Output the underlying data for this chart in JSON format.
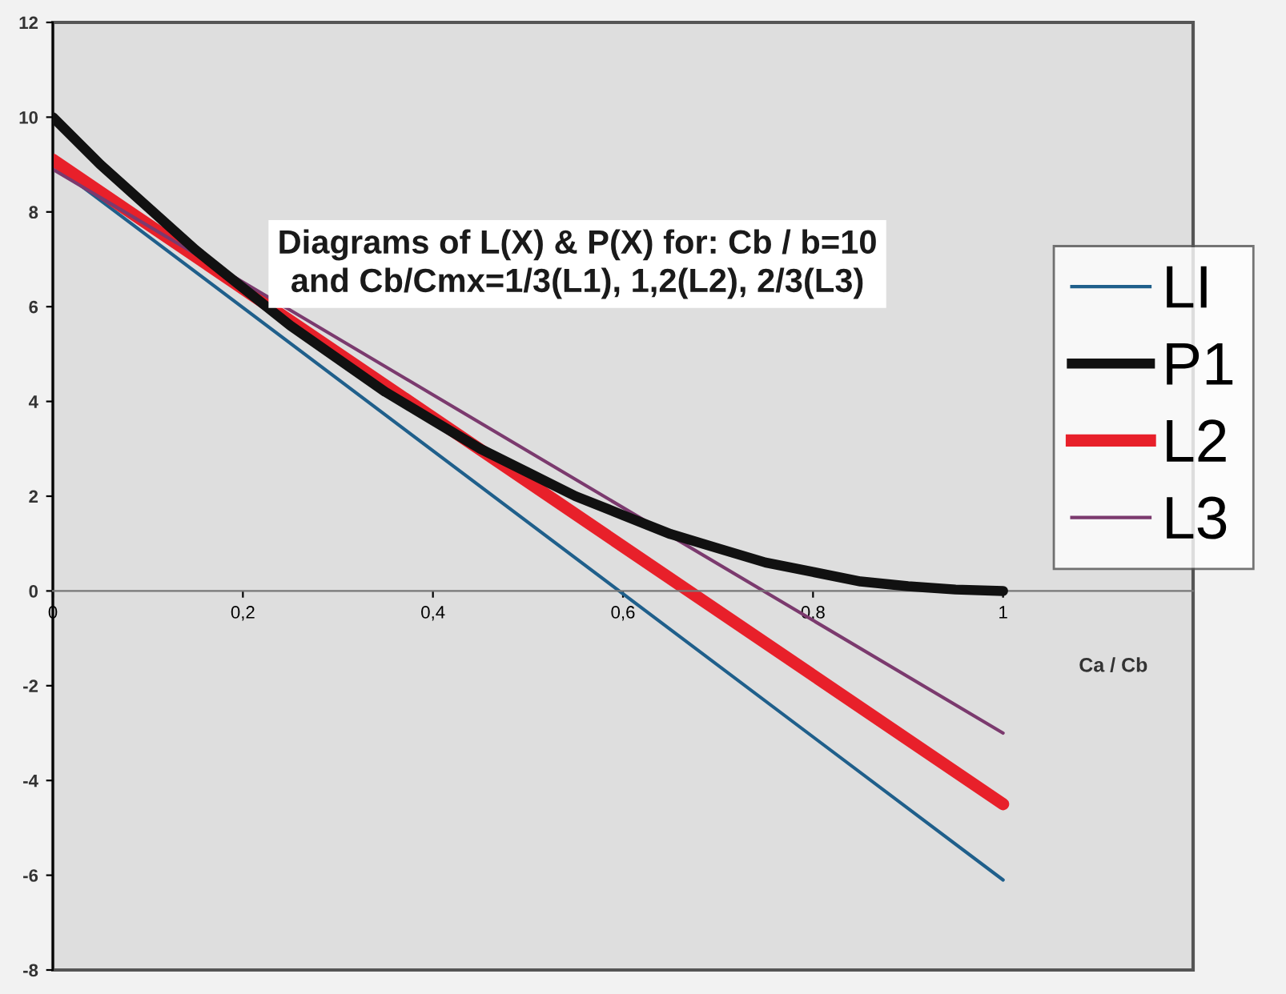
{
  "chart_data": {
    "type": "line",
    "title": "Diagrams of L(X) & P(X) for: Cb / b=10\nand Cb/Cmx=1/3(L1), 1,2(L2), 2/3(L3)",
    "xlabel": "Ca / Cb",
    "xlim": [
      0,
      1.2
    ],
    "ylim": [
      -8,
      12
    ],
    "xticks": [
      {
        "value": 0,
        "label": "0"
      },
      {
        "value": 0.2,
        "label": "0,2"
      },
      {
        "value": 0.4,
        "label": "0,4"
      },
      {
        "value": 0.6,
        "label": "0,6"
      },
      {
        "value": 0.8,
        "label": "0,8"
      },
      {
        "value": 1,
        "label": "1"
      }
    ],
    "yticks": [
      -8,
      -6,
      -4,
      -2,
      0,
      2,
      4,
      6,
      8,
      10,
      12
    ],
    "grid": false,
    "legend": "right",
    "marker": "none",
    "line_style": "solid",
    "series": [
      {
        "name": "LI",
        "color": "#1f5f8b",
        "x": [
          0,
          1
        ],
        "values": [
          9,
          -6.1
        ]
      },
      {
        "name": "P1",
        "color": "#111111",
        "x": [
          0,
          0.05,
          0.1,
          0.15,
          0.2,
          0.25,
          0.3,
          0.35,
          0.4,
          0.45,
          0.5,
          0.55,
          0.6,
          0.65,
          0.7,
          0.75,
          0.8,
          0.85,
          0.9,
          0.95,
          1
        ],
        "values": [
          10,
          9.0,
          8.1,
          7.2,
          6.4,
          5.6,
          4.9,
          4.2,
          3.6,
          3.0,
          2.5,
          2.0,
          1.6,
          1.2,
          0.9,
          0.6,
          0.4,
          0.2,
          0.1,
          0.03,
          0
        ]
      },
      {
        "name": "L2",
        "color": "#e8202a",
        "x": [
          0,
          1
        ],
        "values": [
          9.1,
          -4.5
        ]
      },
      {
        "name": "L3",
        "color": "#7b3a6e",
        "x": [
          0,
          1
        ],
        "values": [
          8.9,
          -3
        ]
      }
    ]
  }
}
